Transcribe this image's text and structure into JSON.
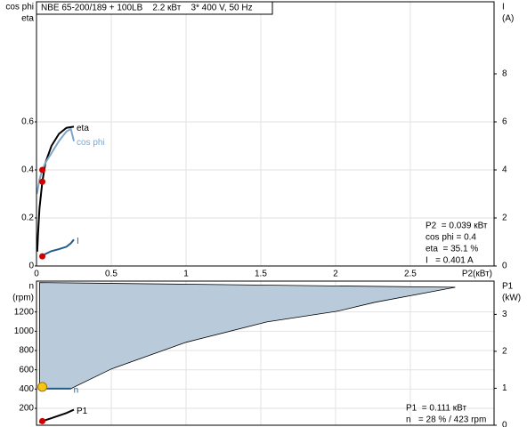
{
  "header": "NBE 65-200/189 + 100LB    2.2 кВт    3* 400 V, 50 Hz",
  "chart_data": [
    {
      "type": "line",
      "y_axis_label": [
        "cos phi",
        "eta"
      ],
      "y2_axis_label": [
        "I",
        "(A)"
      ],
      "x_axis_label": "P2(кВт)",
      "xlim": [
        0,
        3.06
      ],
      "xticks": [
        0,
        0.5,
        1,
        1.5,
        2,
        2.5
      ],
      "ylim": [
        0,
        1.1
      ],
      "yticks": [
        0,
        0.2,
        0.4,
        0.6
      ],
      "y2lim": [
        0,
        11
      ],
      "y2ticks": [
        0,
        2,
        4,
        6,
        8
      ],
      "grid": true,
      "series": [
        {
          "name": "eta",
          "color": "#000000",
          "x": [
            0.005,
            0.01,
            0.02,
            0.039,
            0.06,
            0.1,
            0.15,
            0.2,
            0.25
          ],
          "values": [
            0.06,
            0.13,
            0.24,
            0.351,
            0.43,
            0.5,
            0.55,
            0.575,
            0.58
          ]
        },
        {
          "name": "cos phi",
          "color": "#7fa6c9",
          "x": [
            0.003,
            0.02,
            0.039,
            0.06,
            0.1,
            0.15,
            0.2,
            0.23,
            0.25
          ],
          "values": [
            0.3,
            0.36,
            0.4,
            0.43,
            0.47,
            0.52,
            0.56,
            0.57,
            0.52
          ]
        },
        {
          "name": "I",
          "color": "#1f5c8c",
          "axis": "y2",
          "x": [
            0.039,
            0.06,
            0.1,
            0.15,
            0.2,
            0.23,
            0.25
          ],
          "values": [
            0.401,
            0.5,
            0.62,
            0.7,
            0.8,
            0.95,
            1.1
          ]
        }
      ],
      "points": [
        {
          "x": 0.039,
          "y": 0.4,
          "color": "#d00000"
        },
        {
          "x": 0.039,
          "y": 0.351,
          "color": "#d00000"
        },
        {
          "x": 0.039,
          "y": 0.401,
          "axis": "y2",
          "color": "#d00000"
        }
      ],
      "info": [
        "P2  = 0.039 кВт",
        "cos phi = 0.4",
        "eta  = 35.1 %",
        "I   = 0.401 A"
      ]
    },
    {
      "type": "area",
      "y_axis_label": [
        "n",
        "(rpm)"
      ],
      "y2_axis_label": [
        "P1",
        "(kW)"
      ],
      "xlim": [
        0,
        3.06
      ],
      "xticks": [
        0,
        0.5,
        1,
        1.5,
        2,
        2.5
      ],
      "ylim": [
        25,
        1520
      ],
      "yticks": [
        200,
        400,
        600,
        800,
        1000,
        1200
      ],
      "y2lim": [
        0,
        3.9
      ],
      "y2ticks": [
        0,
        1,
        2,
        3
      ],
      "grid": true,
      "area": {
        "color": "#b9cadb",
        "x": [
          0.02,
          2.8,
          2.26,
          2.01,
          1.54,
          1.0,
          0.5,
          0.23,
          0.02
        ],
        "values": [
          1505,
          1456,
          1299,
          1207,
          1097,
          885,
          608,
          405,
          405
        ]
      },
      "series": [
        {
          "name": "n",
          "color": "#1f5c8c",
          "x": [
            0.02,
            0.23
          ],
          "values": [
            405,
            405
          ]
        },
        {
          "name": "P1",
          "color": "#000000",
          "axis": "y2",
          "x": [
            0.02,
            0.039,
            0.1,
            0.15,
            0.2,
            0.25
          ],
          "values": [
            0.07,
            0.111,
            0.19,
            0.26,
            0.33,
            0.42
          ]
        }
      ],
      "points": [
        {
          "x": 0.039,
          "y": 423,
          "color": "#f5c518"
        },
        {
          "x": 0.039,
          "y": 0.111,
          "axis": "y2",
          "color": "#d00000"
        }
      ],
      "info": [
        "P1  = 0.111 кВт",
        "n   = 28 % / 423 rpm"
      ]
    }
  ]
}
